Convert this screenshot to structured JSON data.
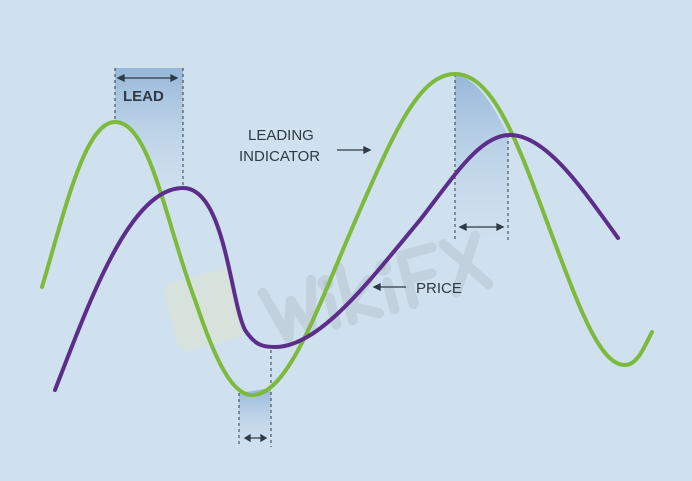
{
  "labels": {
    "lead": "LEAD",
    "leading_line1": "LEADING",
    "leading_line2": "INDICATOR",
    "price": "PRICE"
  },
  "watermark": "WikiFX",
  "colors": {
    "background": "#cfe0ee",
    "leading_indicator": "#7dba3c",
    "price": "#5c2e8a",
    "text": "#2f3a44",
    "shade": "#9dbcdb"
  }
}
